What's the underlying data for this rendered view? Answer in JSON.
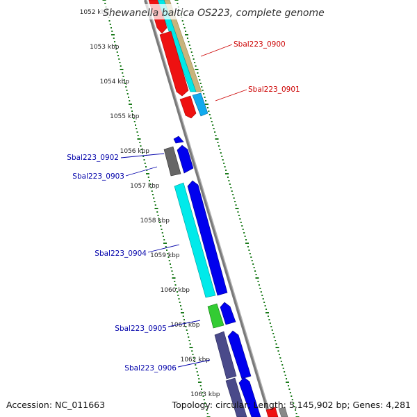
{
  "title": "Shewanella baltica OS223, complete genome",
  "footer": {
    "accession": "Accession: NC_011663",
    "topology": "Topology: circular; Length: 5,145,902 bp; Genes: 4,281"
  },
  "ticks": [
    "1052 kbp",
    "1053 kbp",
    "1054 kbp",
    "1055 kbp",
    "1056 kbp",
    "1057 kbp",
    "1058 kbp",
    "1059 kbp",
    "1060 kbp",
    "1061 kbp",
    "1062 kbp",
    "1063 kbp"
  ],
  "labels": [
    {
      "text": "Sbal223_0900",
      "color": "#cc0000"
    },
    {
      "text": "Sbal223_0901",
      "color": "#cc0000"
    },
    {
      "text": "Sbal223_0902",
      "color": "#0000aa"
    },
    {
      "text": "Sbal223_0903",
      "color": "#0000aa"
    },
    {
      "text": "Sbal223_0904",
      "color": "#0000aa"
    },
    {
      "text": "Sbal223_0905",
      "color": "#0000aa"
    },
    {
      "text": "Sbal223_0906",
      "color": "#0000aa"
    }
  ],
  "colors": {
    "backbone": "#888888",
    "ticks": "#1a7a1a",
    "red": "#ee0000",
    "cyan": "#00e5e5",
    "tan": "#c2b27a",
    "sky": "#11aaee",
    "blue": "#0000ee",
    "gray": "#666666",
    "green": "#33cc33",
    "slate": "#4a4a8a"
  }
}
